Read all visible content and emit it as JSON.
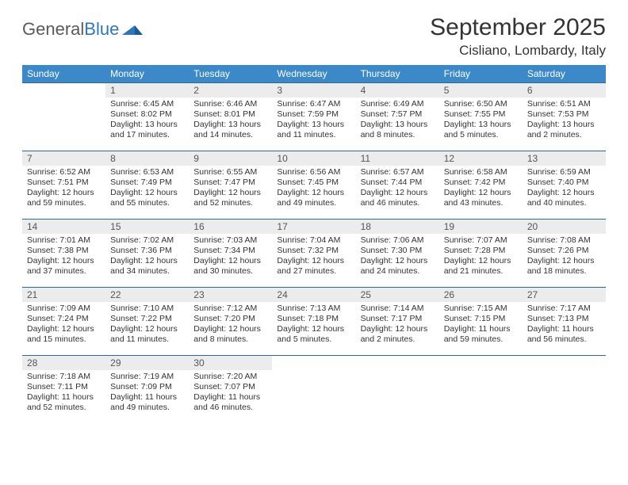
{
  "logo": {
    "text_general": "General",
    "text_blue": "Blue"
  },
  "title": {
    "month": "September 2025",
    "location": "Cisliano, Lombardy, Italy"
  },
  "style": {
    "header_bg": "#3c89c9",
    "header_text": "#ffffff",
    "row_divider": "#2b6aa0",
    "daynum_bg": "#ececec",
    "daynum_color": "#555555",
    "body_text": "#333333",
    "body_fontsize_pt": 8,
    "header_fontsize_pt": 9,
    "title_fontsize_pt": 22,
    "loc_fontsize_pt": 13
  },
  "weekdays": [
    "Sunday",
    "Monday",
    "Tuesday",
    "Wednesday",
    "Thursday",
    "Friday",
    "Saturday"
  ],
  "weeks": [
    [
      null,
      {
        "n": "1",
        "sr": "Sunrise: 6:45 AM",
        "ss": "Sunset: 8:02 PM",
        "dl": "Daylight: 13 hours and 17 minutes."
      },
      {
        "n": "2",
        "sr": "Sunrise: 6:46 AM",
        "ss": "Sunset: 8:01 PM",
        "dl": "Daylight: 13 hours and 14 minutes."
      },
      {
        "n": "3",
        "sr": "Sunrise: 6:47 AM",
        "ss": "Sunset: 7:59 PM",
        "dl": "Daylight: 13 hours and 11 minutes."
      },
      {
        "n": "4",
        "sr": "Sunrise: 6:49 AM",
        "ss": "Sunset: 7:57 PM",
        "dl": "Daylight: 13 hours and 8 minutes."
      },
      {
        "n": "5",
        "sr": "Sunrise: 6:50 AM",
        "ss": "Sunset: 7:55 PM",
        "dl": "Daylight: 13 hours and 5 minutes."
      },
      {
        "n": "6",
        "sr": "Sunrise: 6:51 AM",
        "ss": "Sunset: 7:53 PM",
        "dl": "Daylight: 13 hours and 2 minutes."
      }
    ],
    [
      {
        "n": "7",
        "sr": "Sunrise: 6:52 AM",
        "ss": "Sunset: 7:51 PM",
        "dl": "Daylight: 12 hours and 59 minutes."
      },
      {
        "n": "8",
        "sr": "Sunrise: 6:53 AM",
        "ss": "Sunset: 7:49 PM",
        "dl": "Daylight: 12 hours and 55 minutes."
      },
      {
        "n": "9",
        "sr": "Sunrise: 6:55 AM",
        "ss": "Sunset: 7:47 PM",
        "dl": "Daylight: 12 hours and 52 minutes."
      },
      {
        "n": "10",
        "sr": "Sunrise: 6:56 AM",
        "ss": "Sunset: 7:45 PM",
        "dl": "Daylight: 12 hours and 49 minutes."
      },
      {
        "n": "11",
        "sr": "Sunrise: 6:57 AM",
        "ss": "Sunset: 7:44 PM",
        "dl": "Daylight: 12 hours and 46 minutes."
      },
      {
        "n": "12",
        "sr": "Sunrise: 6:58 AM",
        "ss": "Sunset: 7:42 PM",
        "dl": "Daylight: 12 hours and 43 minutes."
      },
      {
        "n": "13",
        "sr": "Sunrise: 6:59 AM",
        "ss": "Sunset: 7:40 PM",
        "dl": "Daylight: 12 hours and 40 minutes."
      }
    ],
    [
      {
        "n": "14",
        "sr": "Sunrise: 7:01 AM",
        "ss": "Sunset: 7:38 PM",
        "dl": "Daylight: 12 hours and 37 minutes."
      },
      {
        "n": "15",
        "sr": "Sunrise: 7:02 AM",
        "ss": "Sunset: 7:36 PM",
        "dl": "Daylight: 12 hours and 34 minutes."
      },
      {
        "n": "16",
        "sr": "Sunrise: 7:03 AM",
        "ss": "Sunset: 7:34 PM",
        "dl": "Daylight: 12 hours and 30 minutes."
      },
      {
        "n": "17",
        "sr": "Sunrise: 7:04 AM",
        "ss": "Sunset: 7:32 PM",
        "dl": "Daylight: 12 hours and 27 minutes."
      },
      {
        "n": "18",
        "sr": "Sunrise: 7:06 AM",
        "ss": "Sunset: 7:30 PM",
        "dl": "Daylight: 12 hours and 24 minutes."
      },
      {
        "n": "19",
        "sr": "Sunrise: 7:07 AM",
        "ss": "Sunset: 7:28 PM",
        "dl": "Daylight: 12 hours and 21 minutes."
      },
      {
        "n": "20",
        "sr": "Sunrise: 7:08 AM",
        "ss": "Sunset: 7:26 PM",
        "dl": "Daylight: 12 hours and 18 minutes."
      }
    ],
    [
      {
        "n": "21",
        "sr": "Sunrise: 7:09 AM",
        "ss": "Sunset: 7:24 PM",
        "dl": "Daylight: 12 hours and 15 minutes."
      },
      {
        "n": "22",
        "sr": "Sunrise: 7:10 AM",
        "ss": "Sunset: 7:22 PM",
        "dl": "Daylight: 12 hours and 11 minutes."
      },
      {
        "n": "23",
        "sr": "Sunrise: 7:12 AM",
        "ss": "Sunset: 7:20 PM",
        "dl": "Daylight: 12 hours and 8 minutes."
      },
      {
        "n": "24",
        "sr": "Sunrise: 7:13 AM",
        "ss": "Sunset: 7:18 PM",
        "dl": "Daylight: 12 hours and 5 minutes."
      },
      {
        "n": "25",
        "sr": "Sunrise: 7:14 AM",
        "ss": "Sunset: 7:17 PM",
        "dl": "Daylight: 12 hours and 2 minutes."
      },
      {
        "n": "26",
        "sr": "Sunrise: 7:15 AM",
        "ss": "Sunset: 7:15 PM",
        "dl": "Daylight: 11 hours and 59 minutes."
      },
      {
        "n": "27",
        "sr": "Sunrise: 7:17 AM",
        "ss": "Sunset: 7:13 PM",
        "dl": "Daylight: 11 hours and 56 minutes."
      }
    ],
    [
      {
        "n": "28",
        "sr": "Sunrise: 7:18 AM",
        "ss": "Sunset: 7:11 PM",
        "dl": "Daylight: 11 hours and 52 minutes."
      },
      {
        "n": "29",
        "sr": "Sunrise: 7:19 AM",
        "ss": "Sunset: 7:09 PM",
        "dl": "Daylight: 11 hours and 49 minutes."
      },
      {
        "n": "30",
        "sr": "Sunrise: 7:20 AM",
        "ss": "Sunset: 7:07 PM",
        "dl": "Daylight: 11 hours and 46 minutes."
      },
      null,
      null,
      null,
      null
    ]
  ]
}
